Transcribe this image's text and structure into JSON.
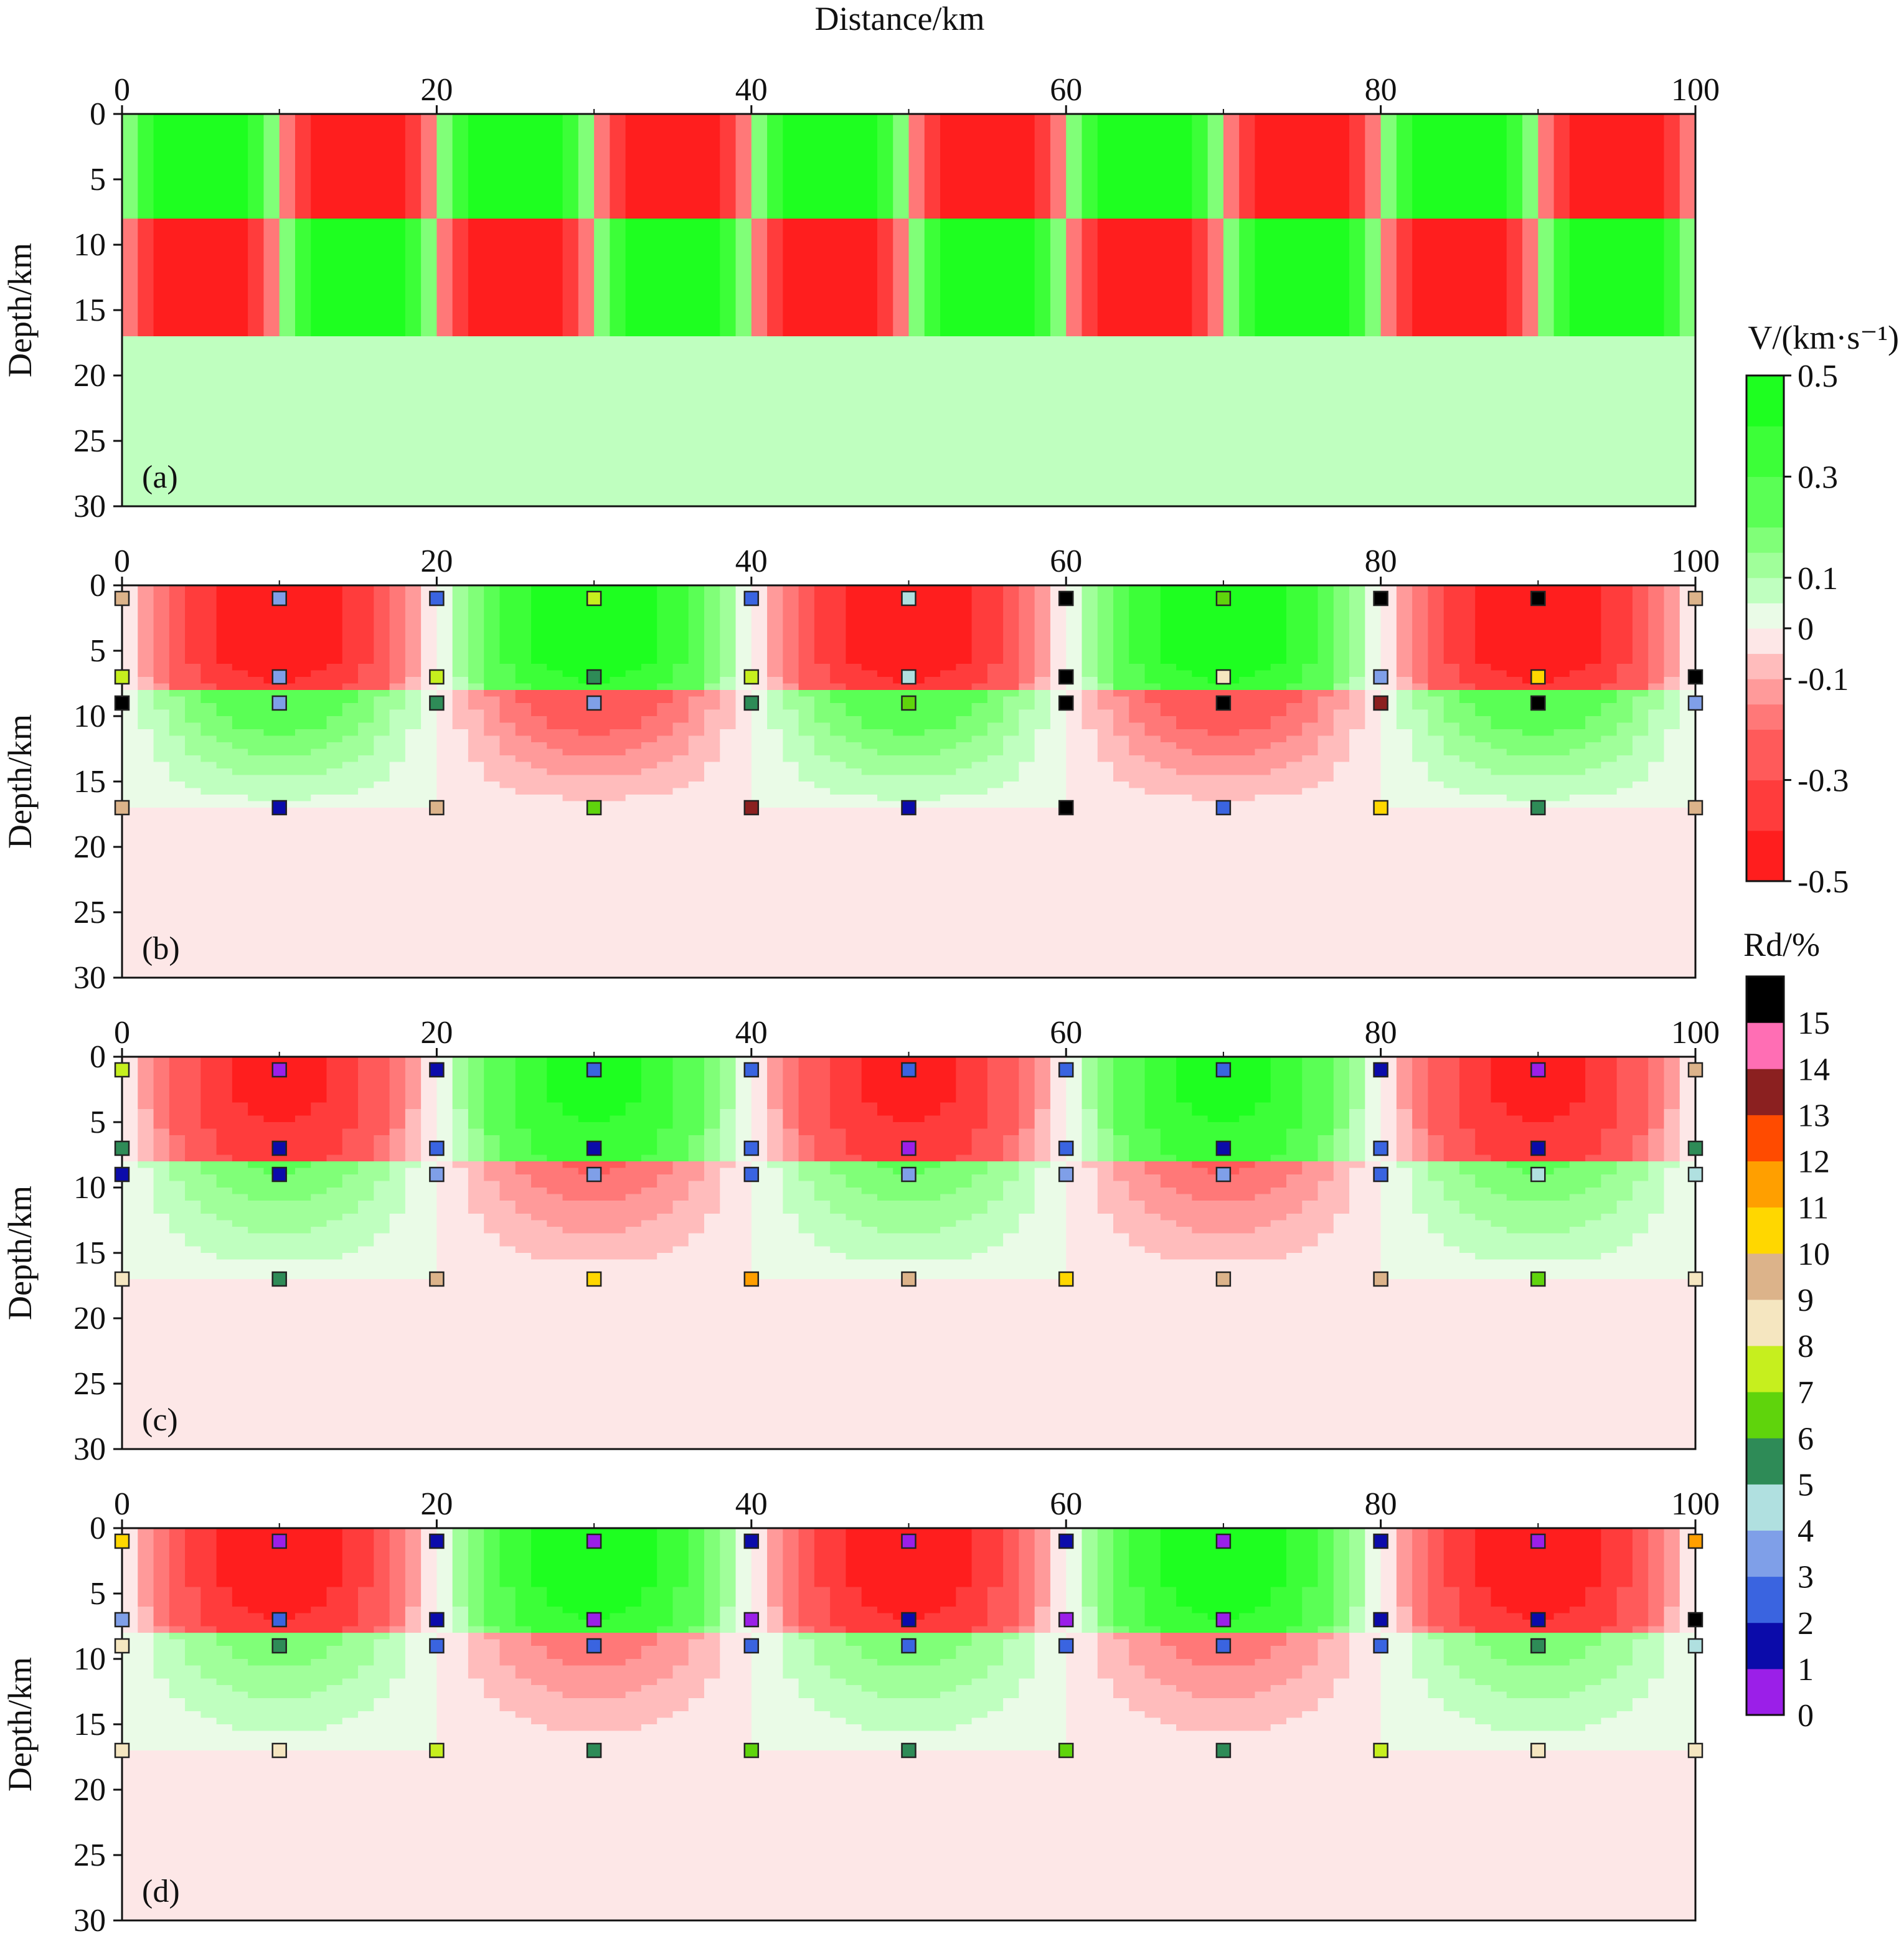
{
  "chart_data": {
    "type": "heatmap",
    "x_axis": {
      "label": "Distance/km",
      "range": [
        0,
        100
      ],
      "ticks": [
        "0",
        "20",
        "40",
        "60",
        "80",
        "100"
      ]
    },
    "y_axis": {
      "label": "Depth/km",
      "range": [
        0,
        30
      ],
      "ticks": [
        "0",
        "5",
        "10",
        "15",
        "20",
        "25",
        "30"
      ]
    },
    "layer_boundaries_km": [
      8,
      17
    ],
    "panels": [
      {
        "id": "a",
        "label": "(a)",
        "kind": "model",
        "block_width_km": 10,
        "bottom_value": 0.05
      },
      {
        "id": "b",
        "label": "(b)",
        "kind": "inversion",
        "amplitude": [
          0.5,
          0.3
        ],
        "spread": [
          1.0,
          1.6
        ],
        "shift_km": [
          0,
          0
        ],
        "band_halfwidth": [
          0.45,
          0.45
        ],
        "layer2_value": 0.2,
        "bottom_value": -0.04,
        "markers": {
          "x_km": [
            0,
            10,
            20,
            30,
            40,
            50,
            60,
            70,
            80,
            90,
            100
          ],
          "depth1_km": [
            1,
            1,
            1,
            1,
            1,
            1,
            1,
            1,
            1,
            1,
            1
          ],
          "depth2_km": [
            7,
            7,
            7,
            7,
            7,
            7,
            7,
            7,
            7,
            7,
            7
          ],
          "depth3_km": [
            9,
            9,
            9,
            9,
            9,
            9,
            9,
            9,
            9,
            9,
            9
          ],
          "depth4_km": [
            17,
            17,
            17,
            17,
            17,
            17,
            17,
            17,
            17,
            17,
            17
          ],
          "rd_row1": [
            9,
            3,
            2,
            7,
            2,
            4,
            16,
            6,
            16,
            16,
            9
          ],
          "rd_row2": [
            7,
            3,
            7,
            5,
            7,
            4,
            16,
            8,
            3,
            10,
            16
          ],
          "rd_row3": [
            16,
            3,
            5,
            3,
            5,
            6,
            16,
            16,
            13,
            16,
            3
          ],
          "rd_row4": [
            9,
            1,
            9,
            6,
            13,
            1,
            16,
            2,
            10,
            5,
            9
          ]
        }
      },
      {
        "id": "c",
        "label": "(c)",
        "kind": "inversion",
        "amplitude": [
          0.45,
          0.22
        ],
        "spread": [
          0.55,
          0.75
        ],
        "shift_km": [
          0,
          0
        ],
        "band_halfwidth": [
          0.4,
          0.4
        ],
        "layer2_value": -0.04,
        "bottom_value": -0.04,
        "markers": {
          "x_km": [
            0,
            10,
            20,
            30,
            40,
            50,
            60,
            70,
            80,
            90,
            100
          ],
          "depth1_km": [
            1,
            1,
            1,
            1,
            1,
            1,
            1,
            1,
            1,
            1,
            1
          ],
          "depth2_km": [
            7,
            7,
            7,
            7,
            7,
            7,
            7,
            7,
            7,
            7,
            7
          ],
          "depth3_km": [
            9,
            9,
            9,
            9,
            9,
            9,
            9,
            9,
            9,
            9,
            9
          ],
          "depth4_km": [
            17,
            17,
            17,
            17,
            17,
            17,
            17,
            17,
            17,
            17,
            17
          ],
          "rd_row1": [
            7,
            0,
            1,
            2,
            2,
            2,
            2,
            2,
            1,
            0,
            9
          ],
          "rd_row2": [
            5,
            1,
            2,
            1,
            2,
            0,
            2,
            1,
            2,
            1,
            5
          ],
          "rd_row3": [
            1,
            1,
            3,
            3,
            2,
            3,
            3,
            3,
            2,
            4,
            4
          ],
          "rd_row4": [
            8,
            5,
            9,
            10,
            11,
            9,
            10,
            9,
            9,
            6,
            8
          ]
        }
      },
      {
        "id": "d",
        "label": "(d)",
        "kind": "inversion",
        "amplitude": [
          0.5,
          0.2
        ],
        "spread": [
          0.6,
          0.8
        ],
        "shift_km": [
          0,
          0
        ],
        "band_halfwidth": [
          0.4,
          0.4
        ],
        "layer2_value": -0.04,
        "bottom_value": -0.04,
        "markers": {
          "x_km": [
            0,
            10,
            20,
            30,
            40,
            50,
            60,
            70,
            80,
            90,
            100
          ],
          "depth1_km": [
            1,
            1,
            1,
            1,
            1,
            1,
            1,
            1,
            1,
            1,
            1
          ],
          "depth2_km": [
            7,
            7,
            7,
            7,
            7,
            7,
            7,
            7,
            7,
            7,
            7
          ],
          "depth3_km": [
            9,
            9,
            9,
            9,
            9,
            9,
            9,
            9,
            9,
            9,
            9
          ],
          "depth4_km": [
            17,
            17,
            17,
            17,
            17,
            17,
            17,
            17,
            17,
            17,
            17
          ],
          "rd_row1": [
            10,
            0,
            1,
            0,
            1,
            0,
            1,
            0,
            1,
            0,
            11
          ],
          "rd_row2": [
            3,
            2,
            1,
            0,
            0,
            1,
            0,
            0,
            1,
            1,
            16
          ],
          "rd_row3": [
            8,
            5,
            2,
            2,
            2,
            2,
            2,
            2,
            2,
            5,
            4
          ],
          "rd_row4": [
            8,
            8,
            7,
            5,
            6,
            5,
            6,
            5,
            7,
            8,
            8
          ]
        }
      }
    ],
    "velocity_colorbar": {
      "title": "V/(km·s⁻¹)",
      "ticks": [
        "0.5",
        "0.3",
        "0.1",
        "0",
        "-0.1",
        "-0.3",
        "-0.5"
      ],
      "tick_values": [
        0.5,
        0.3,
        0.1,
        0,
        -0.1,
        -0.3,
        -0.5
      ],
      "bounds": [
        -0.5,
        -0.4,
        -0.3,
        -0.2,
        -0.15,
        -0.1,
        -0.05,
        0,
        0.05,
        0.1,
        0.15,
        0.2,
        0.3,
        0.4,
        0.5
      ],
      "colors": [
        "#ff1e1e",
        "#ff3c3c",
        "#ff5a5a",
        "#ff7878",
        "#ff9a9a",
        "#ffbcbc",
        "#fde7e7",
        "#eafbe7",
        "#bfffbf",
        "#a0ff9a",
        "#80ff78",
        "#5aff55",
        "#3cff38",
        "#1eff20"
      ]
    },
    "rd_colorbar": {
      "title": "Rd/%",
      "ticks": [
        "15",
        "14",
        "13",
        "12",
        "11",
        "10",
        "9",
        "8",
        "7",
        "6",
        "5",
        "4",
        "3",
        "2",
        "1",
        "0"
      ],
      "colors": [
        "#9b1fe8",
        "#0b0baa",
        "#3a64e0",
        "#7f9fe8",
        "#b0e0e0",
        "#2e8b57",
        "#5fd40c",
        "#c6ef1e",
        "#f5e6c0",
        "#dcb38a",
        "#ffd700",
        "#ff9f00",
        "#ff4b00",
        "#8b2020",
        "#ff6eb4",
        "#000000"
      ]
    }
  }
}
